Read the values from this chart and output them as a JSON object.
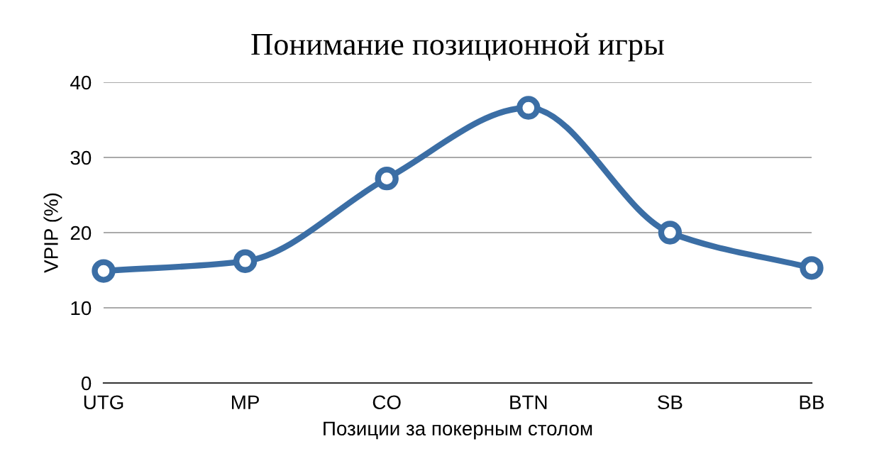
{
  "chart_data": {
    "type": "line",
    "title": "Понимание позиционной игры",
    "xlabel": "Позиции за покерным столом",
    "ylabel": "VPIP (%)",
    "categories": [
      "UTG",
      "MP",
      "CO",
      "BTN",
      "SB",
      "BB"
    ],
    "series": [
      {
        "color": "#3b6ea5",
        "values": [
          14.9,
          16.2,
          27.2,
          36.6,
          20,
          15.3
        ]
      }
    ],
    "ylim": [
      0,
      40
    ],
    "yticks": [
      0,
      10,
      20,
      30,
      40
    ],
    "grid": "y",
    "marker": "circle",
    "line_style": "solid"
  }
}
